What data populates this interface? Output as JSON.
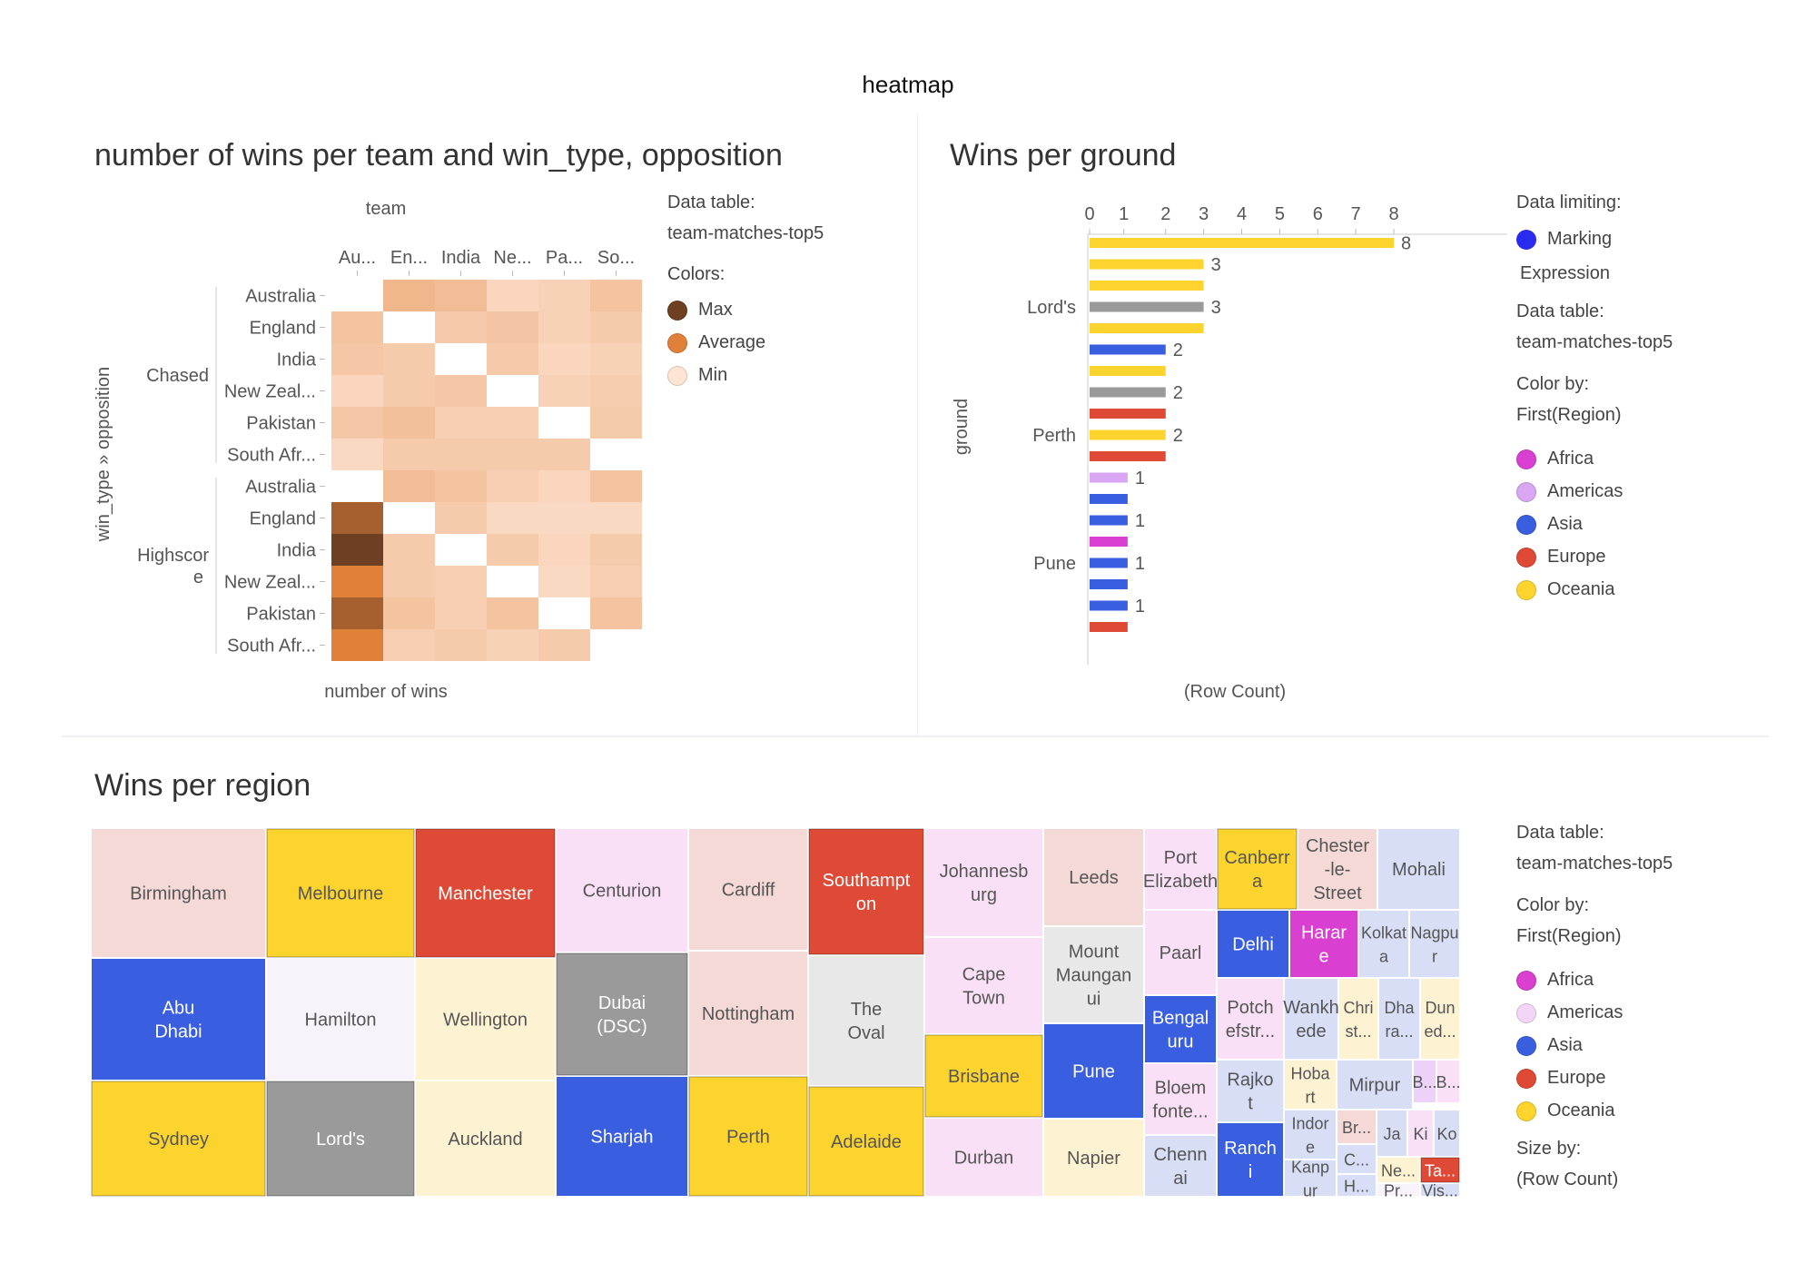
{
  "page_title": "heatmap",
  "heatmap_panel": {
    "title": "number of wins per team and win_type, opposition",
    "legend": {
      "data_table_label": "Data table:",
      "data_table_value": "team-matches-top5",
      "colors_label": "Colors:",
      "items": [
        {
          "label": "Max",
          "color": "#6e3f22"
        },
        {
          "label": "Average",
          "color": "#e0813a"
        },
        {
          "label": "Min",
          "color": "#fde4d3"
        }
      ]
    }
  },
  "bar_panel": {
    "title": "Wins per ground",
    "legend": {
      "data_limiting_label": "Data limiting:",
      "marking_label": "Marking",
      "marking_color": "#2b2bf0",
      "expression_label": "Expression",
      "data_table_label": "Data table:",
      "data_table_value": "team-matches-top5",
      "color_by_label": "Color by:",
      "color_by_value": "First(Region)",
      "regions": [
        {
          "label": "Africa",
          "color": "#d93fd0"
        },
        {
          "label": "Americas",
          "color": "#d8a6f3"
        },
        {
          "label": "Asia",
          "color": "#3a5ee0"
        },
        {
          "label": "Europe",
          "color": "#de4a36"
        },
        {
          "label": "Oceania",
          "color": "#fdd42e"
        }
      ]
    }
  },
  "treemap_panel": {
    "title": "Wins per region",
    "legend": {
      "data_table_label": "Data table:",
      "data_table_value": "team-matches-top5",
      "color_by_label": "Color by:",
      "color_by_value": "First(Region)",
      "regions": [
        {
          "label": "Africa",
          "color": "#d93fd0"
        },
        {
          "label": "Americas",
          "color": "#f1d6f5"
        },
        {
          "label": "Asia",
          "color": "#3a5ee0"
        },
        {
          "label": "Europe",
          "color": "#de4a36"
        },
        {
          "label": "Oceania",
          "color": "#fdd42e"
        }
      ],
      "size_by_label": "Size by:",
      "size_by_value": "(Row Count)"
    }
  },
  "chart_data": [
    {
      "type": "heatmap",
      "title": "number of wins per team and win_type, opposition",
      "x_axis_title": "team",
      "y_axis_title": "win_type » opposition",
      "bottom_label": "number of wins",
      "columns": [
        "Au...",
        "En...",
        "India",
        "Ne...",
        "Pa...",
        "So..."
      ],
      "row_groups": [
        {
          "label": "Chased",
          "rows": [
            "Australia",
            "England",
            "India",
            "New Zeal...",
            "Pakistan",
            "South Afr..."
          ]
        },
        {
          "label": "Highscor\ne",
          "rows": [
            "Australia",
            "England",
            "India",
            "New Zeal...",
            "Pakistan",
            "South Afr..."
          ]
        }
      ],
      "color_scale": {
        "min": "#fde4d3",
        "average": "#e0813a",
        "max": "#6e3f22"
      },
      "cells": [
        [
          null,
          0.25,
          0.22,
          0.08,
          0.1,
          0.18
        ],
        [
          0.18,
          0.0,
          0.15,
          0.17,
          0.1,
          0.14
        ],
        [
          0.16,
          0.14,
          0.0,
          0.15,
          0.08,
          0.1
        ],
        [
          0.08,
          0.14,
          0.16,
          0.0,
          0.1,
          0.13
        ],
        [
          0.16,
          0.2,
          0.12,
          0.12,
          0.0,
          0.14
        ],
        [
          0.06,
          0.14,
          0.14,
          0.14,
          0.14,
          null
        ],
        [
          null,
          0.22,
          0.18,
          0.12,
          0.08,
          0.18
        ],
        [
          0.78,
          0.0,
          0.14,
          0.06,
          0.06,
          0.06
        ],
        [
          1.0,
          0.14,
          0.0,
          0.14,
          0.08,
          0.14
        ],
        [
          0.55,
          0.14,
          0.12,
          0.0,
          0.06,
          0.12
        ],
        [
          0.78,
          0.18,
          0.12,
          0.18,
          0.0,
          0.18
        ],
        [
          0.55,
          0.12,
          0.14,
          0.1,
          0.14,
          null
        ]
      ]
    },
    {
      "type": "bar",
      "orientation": "horizontal",
      "title": "Wins per ground",
      "xlabel": "(Row Count)",
      "ylabel": "ground",
      "x_ticks": [
        "0",
        "1",
        "2",
        "3",
        "4",
        "5",
        "6",
        "7",
        "8"
      ],
      "xlim": [
        0,
        8
      ],
      "y_category_labels": [
        {
          "label": "Lord's",
          "bar_index": 3
        },
        {
          "label": "Perth",
          "bar_index": 9
        },
        {
          "label": "Pune",
          "bar_index": 15
        }
      ],
      "bars": [
        {
          "value": 8,
          "region": "Oceania",
          "label": "8"
        },
        {
          "value": 3,
          "region": "Oceania",
          "label": "3"
        },
        {
          "value": 3,
          "region": "Oceania",
          "label": ""
        },
        {
          "value": 3,
          "region": "Lord's",
          "label": "3"
        },
        {
          "value": 3,
          "region": "Oceania",
          "label": ""
        },
        {
          "value": 2,
          "region": "Asia",
          "label": "2"
        },
        {
          "value": 2,
          "region": "Oceania",
          "label": ""
        },
        {
          "value": 2,
          "region": "Lord's",
          "label": "2"
        },
        {
          "value": 2,
          "region": "Europe",
          "label": ""
        },
        {
          "value": 2,
          "region": "Oceania",
          "label": "2"
        },
        {
          "value": 2,
          "region": "Europe",
          "label": ""
        },
        {
          "value": 1,
          "region": "Americas",
          "label": "1"
        },
        {
          "value": 1,
          "region": "Asia",
          "label": ""
        },
        {
          "value": 1,
          "region": "Asia",
          "label": "1"
        },
        {
          "value": 1,
          "region": "Africa",
          "label": ""
        },
        {
          "value": 1,
          "region": "Asia",
          "label": "1"
        },
        {
          "value": 1,
          "region": "Asia",
          "label": ""
        },
        {
          "value": 1,
          "region": "Asia",
          "label": "1"
        },
        {
          "value": 1,
          "region": "Europe",
          "label": ""
        }
      ]
    },
    {
      "type": "treemap",
      "title": "Wins per region",
      "tiles": [
        {
          "label": "Birmingham",
          "region": "Europe"
        },
        {
          "label": "Abu Dhabi",
          "region": "Asia"
        },
        {
          "label": "Sydney",
          "region": "Oceania"
        },
        {
          "label": "Melbourne",
          "region": "Oceania"
        },
        {
          "label": "Hamilton",
          "region": "Oceania"
        },
        {
          "label": "Lord's",
          "region": "Lord's"
        },
        {
          "label": "Manchester",
          "region": "Europe"
        },
        {
          "label": "Wellington",
          "region": "Oceania"
        },
        {
          "label": "Auckland",
          "region": "Oceania"
        },
        {
          "label": "Centurion",
          "region": "Africa"
        },
        {
          "label": "Dubai (DSC)",
          "region": "Asia"
        },
        {
          "label": "Sharjah",
          "region": "Asia"
        },
        {
          "label": "Cardiff",
          "region": "Europe"
        },
        {
          "label": "Nottingham",
          "region": "Europe"
        },
        {
          "label": "Perth",
          "region": "Oceania"
        },
        {
          "label": "Southampt on",
          "region": "Europe"
        },
        {
          "label": "The Oval",
          "region": "Europe"
        },
        {
          "label": "Adelaide",
          "region": "Oceania"
        },
        {
          "label": "Johannesb urg",
          "region": "Africa"
        },
        {
          "label": "Cape Town",
          "region": "Africa"
        },
        {
          "label": "Brisbane",
          "region": "Oceania"
        },
        {
          "label": "Durban",
          "region": "Africa"
        },
        {
          "label": "Leeds",
          "region": "Europe"
        },
        {
          "label": "Mount Maungan ui",
          "region": "Oceania"
        },
        {
          "label": "Pune",
          "region": "Asia"
        },
        {
          "label": "Napier",
          "region": "Oceania"
        },
        {
          "label": "Port Elizabeth",
          "region": "Africa"
        },
        {
          "label": "Canberr a",
          "region": "Oceania"
        },
        {
          "label": "Chester -le- Street",
          "region": "Europe"
        },
        {
          "label": "Mohali",
          "region": "Asia"
        },
        {
          "label": "Paarl",
          "region": "Africa"
        },
        {
          "label": "Delhi",
          "region": "Asia"
        },
        {
          "label": "Harar e",
          "region": "Africa"
        },
        {
          "label": "Kolkat a",
          "region": "Asia"
        },
        {
          "label": "Nagpu r",
          "region": "Asia"
        },
        {
          "label": "Bengal uru",
          "region": "Asia"
        },
        {
          "label": "Potch efstr...",
          "region": "Africa"
        },
        {
          "label": "Wankh ede",
          "region": "Asia"
        },
        {
          "label": "Chri st...",
          "region": "Oceania"
        },
        {
          "label": "Dha ra...",
          "region": "Asia"
        },
        {
          "label": "Dun ed...",
          "region": "Oceania"
        },
        {
          "label": "Bloem fonte...",
          "region": "Africa"
        },
        {
          "label": "Rajko t",
          "region": "Asia"
        },
        {
          "label": "Hoba rt",
          "region": "Oceania"
        },
        {
          "label": "Mirpur",
          "region": "Asia"
        },
        {
          "label": "B...",
          "region": "Americas"
        },
        {
          "label": "B...",
          "region": "Africa"
        },
        {
          "label": "Indor e",
          "region": "Asia"
        },
        {
          "label": "Br...",
          "region": "Europe"
        },
        {
          "label": "Ja",
          "region": "Asia"
        },
        {
          "label": "Ki",
          "region": "Africa"
        },
        {
          "label": "Ko",
          "region": "Asia"
        },
        {
          "label": "C...",
          "region": "Asia"
        },
        {
          "label": "Ne...",
          "region": "Oceania"
        },
        {
          "label": "Ta...",
          "region": "Europe"
        },
        {
          "label": "Chenn ai",
          "region": "Asia"
        },
        {
          "label": "Ranch i",
          "region": "Asia"
        },
        {
          "label": "Kanp ur",
          "region": "Asia"
        },
        {
          "label": "H...",
          "region": "Asia"
        },
        {
          "label": "Pr...",
          "region": "Americas"
        },
        {
          "label": "Vis...",
          "region": "Asia"
        }
      ]
    }
  ]
}
